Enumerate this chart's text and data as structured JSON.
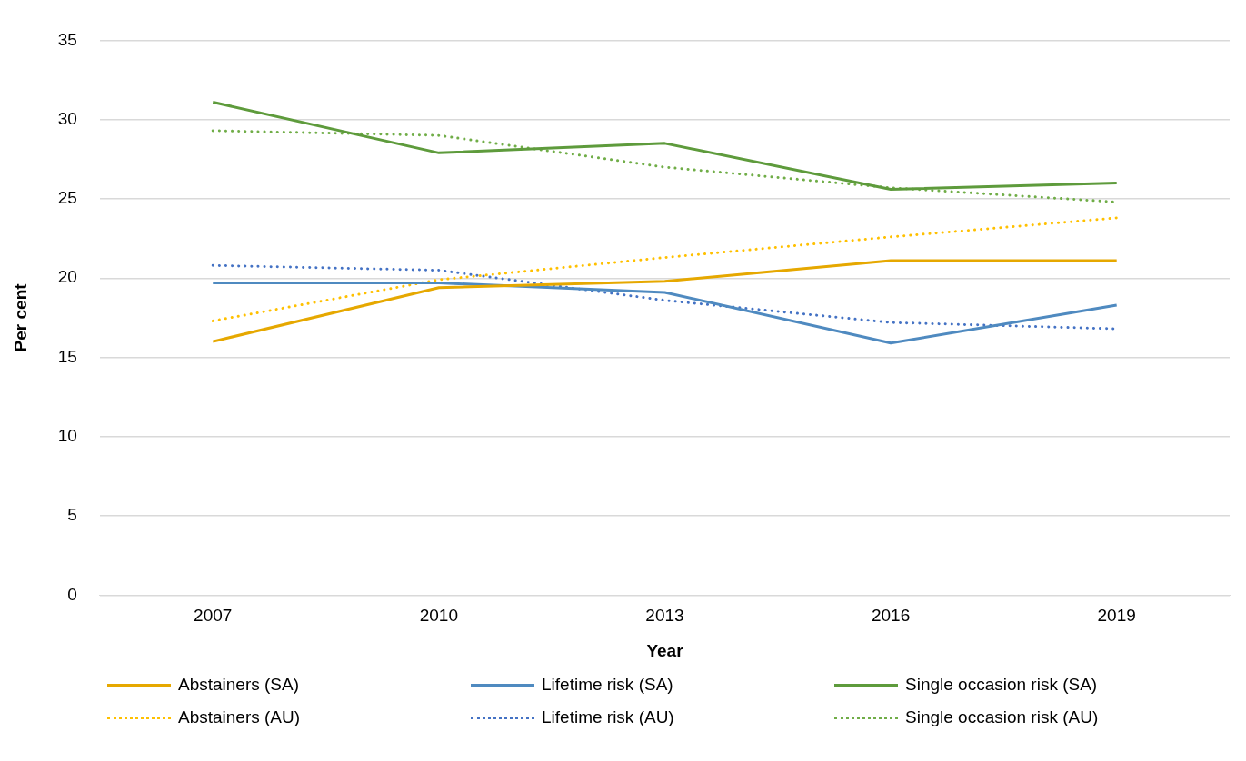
{
  "chart_data": {
    "type": "line",
    "xlabel": "Year",
    "ylabel": "Per cent",
    "categories": [
      "2007",
      "2010",
      "2013",
      "2016",
      "2019"
    ],
    "series": [
      {
        "name": "Abstainers (SA)",
        "color": "#e6a800",
        "values": [
          16.0,
          19.4,
          19.8,
          21.1,
          21.1
        ],
        "line_style": "solid"
      },
      {
        "name": "Lifetime risk (SA)",
        "color": "#4f8ac0",
        "values": [
          19.7,
          19.7,
          19.1,
          15.9,
          18.3
        ],
        "line_style": "solid"
      },
      {
        "name": "Single occasion risk (SA)",
        "color": "#5e9b3c",
        "values": [
          31.1,
          27.9,
          28.5,
          25.6,
          26.0
        ],
        "line_style": "solid"
      },
      {
        "name": "Abstainers (AU)",
        "color": "#ffc000",
        "values": [
          17.3,
          19.9,
          21.3,
          22.6,
          23.8
        ],
        "line_style": "dotted"
      },
      {
        "name": "Lifetime risk (AU)",
        "color": "#4472c4",
        "values": [
          20.8,
          20.5,
          18.6,
          17.2,
          16.8
        ],
        "line_style": "dotted"
      },
      {
        "name": "Single occasion risk (AU)",
        "color": "#70ad47",
        "values": [
          29.3,
          29.0,
          27.0,
          25.7,
          24.8
        ],
        "line_style": "dotted"
      }
    ],
    "ylim": [
      0,
      35
    ],
    "yticks": [
      0,
      5,
      10,
      15,
      20,
      25,
      30,
      35
    ],
    "grid": "y",
    "legend": "bottom",
    "marker": "none"
  }
}
